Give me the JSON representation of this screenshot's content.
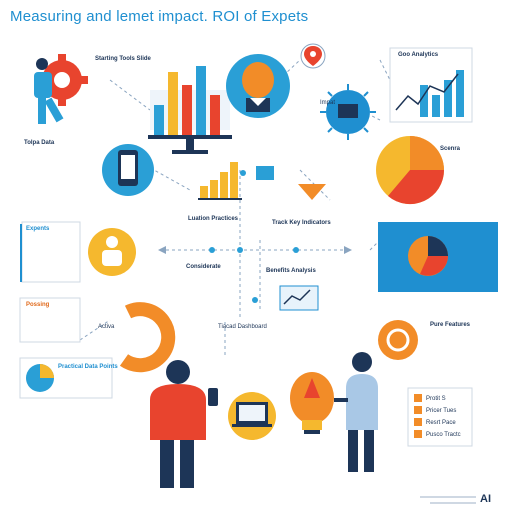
{
  "title": "Measuring and lemet impact. ROI of Expets",
  "brand": "AI",
  "labels": {
    "top_left": "Starting Tools Slide",
    "top_right": "Goo Analytics",
    "center_small": "Impat",
    "left_mid": "Tolpa Data",
    "right_pie": "Scenra",
    "left_box": "Expents",
    "center_left_heading": "Luation Practices",
    "center_right_heading": "Track Key Indicators",
    "center_lower_left": "Considerate",
    "center_lower_right": "Benefits Analysis",
    "left_box2": "Possing",
    "pie_box": "Practical Data Points",
    "laptop": "Tiacad Dashboard",
    "right_lower": "Pure Features",
    "bullet_1": "Protit S",
    "bullet_2": "Pricer Tues",
    "bullet_3": "Resrt Pace",
    "bullet_4": "Pusco Tractc",
    "small_chart_label": "Activa"
  },
  "colors": {
    "accent_blue": "#1f8fd0",
    "orange": "#f28c28",
    "teal": "#2a9fd6",
    "navy": "#1d3557",
    "yellow": "#f5b82e",
    "red": "#e8442e"
  }
}
